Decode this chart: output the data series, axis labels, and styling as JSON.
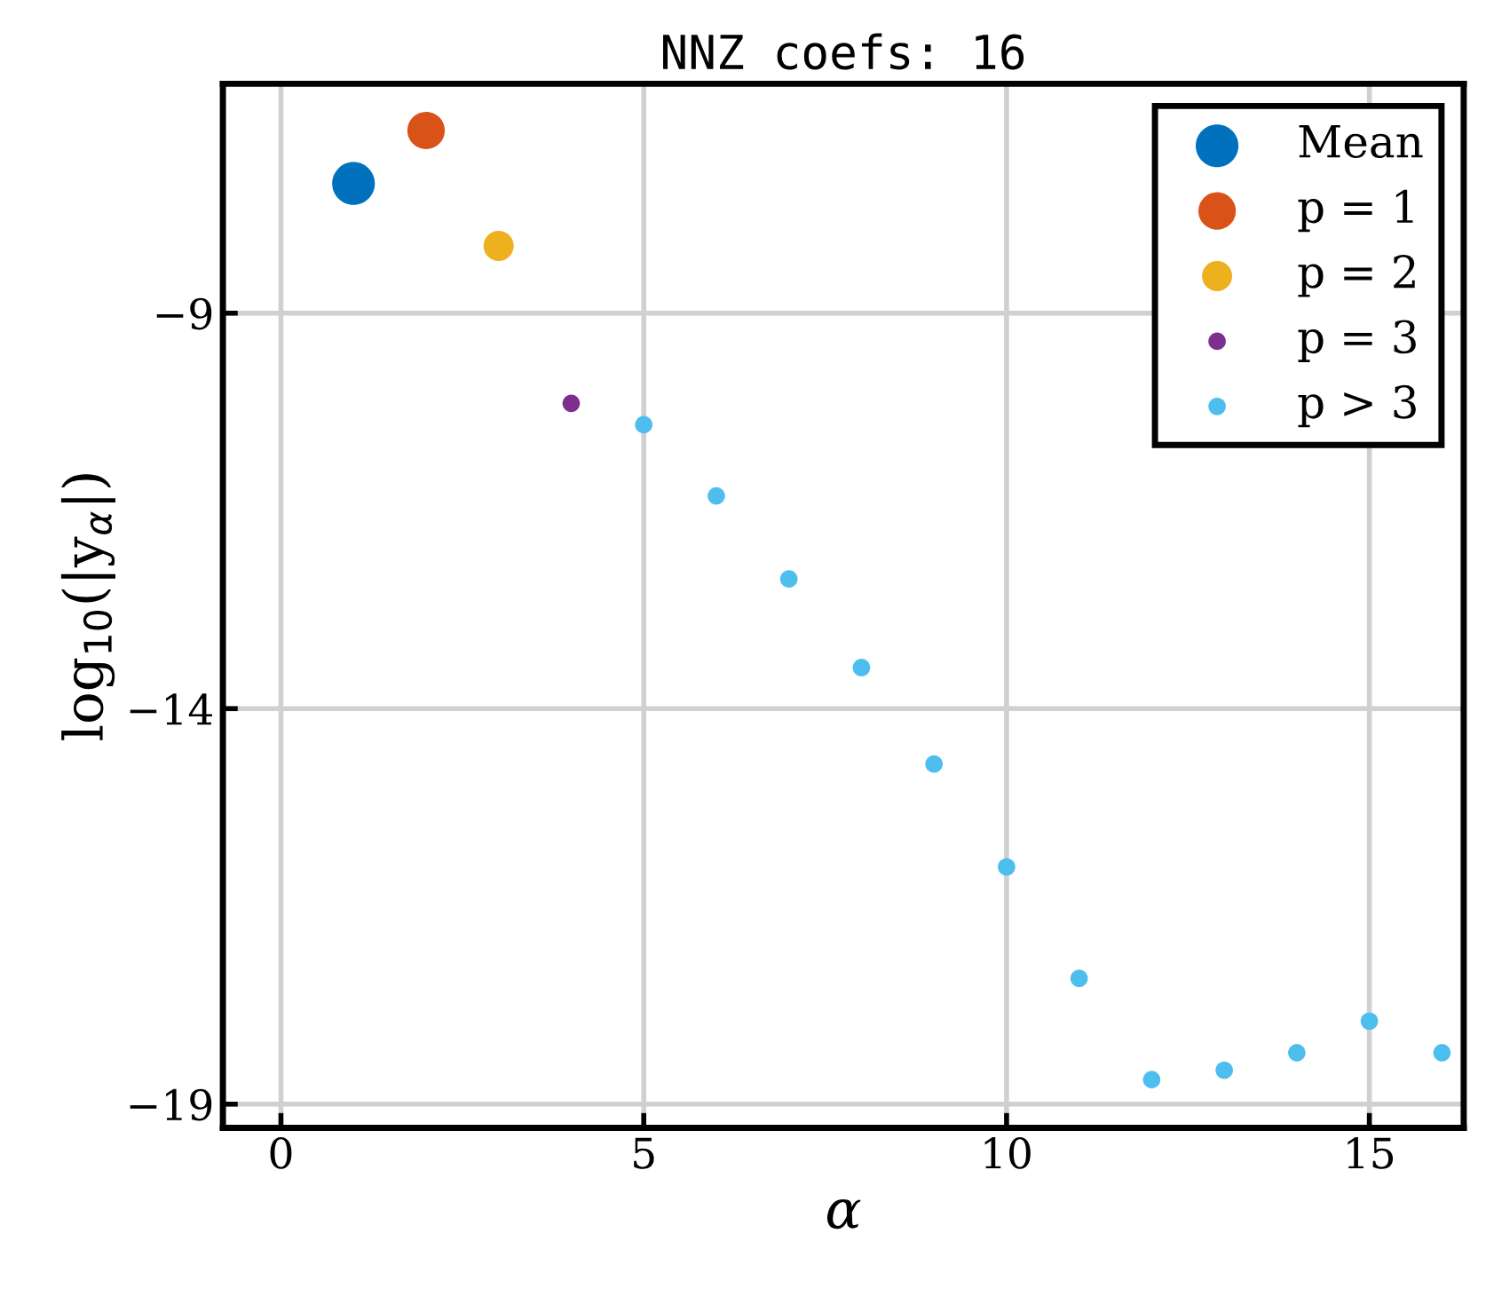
{
  "chart_data": {
    "type": "scatter",
    "title": "NNZ coefs: 16",
    "xlabel": "α",
    "ylabel": "log$_{10}$(|y$_{α}$|)",
    "series": [
      {
        "name": "Mean",
        "color": "#0072bd",
        "x": [
          1
        ],
        "values": [
          -7.36
        ]
      },
      {
        "name": "p = 1",
        "color": "#d95319",
        "x": [
          2
        ],
        "values": [
          -6.69
        ]
      },
      {
        "name": "p = 2",
        "color": "#edb120",
        "x": [
          3
        ],
        "values": [
          -8.15
        ]
      },
      {
        "name": "p = 3",
        "color": "#7e2f8e",
        "x": [
          4
        ],
        "values": [
          -10.14
        ]
      },
      {
        "name": "p > 3",
        "color": "#4dbeee",
        "x": [
          5,
          6,
          7,
          8,
          9,
          10,
          11,
          12,
          13,
          14,
          15,
          16
        ],
        "values": [
          -10.41,
          -11.31,
          -12.36,
          -13.48,
          -14.7,
          -16.0,
          -17.41,
          -18.69,
          -18.57,
          -18.35,
          -17.95,
          -18.35
        ]
      }
    ],
    "xlim": [
      -0.8,
      16.3
    ],
    "ylim": [
      -19.3,
      -6.1
    ],
    "xticks": [
      0,
      5,
      10,
      15
    ],
    "yticks": [
      {
        "value": -19,
        "label": "−19"
      },
      {
        "value": -14,
        "label": "−14"
      },
      {
        "value": -9,
        "label": "−9"
      }
    ],
    "grid": true,
    "legend": "top right",
    "marker": "circle"
  }
}
